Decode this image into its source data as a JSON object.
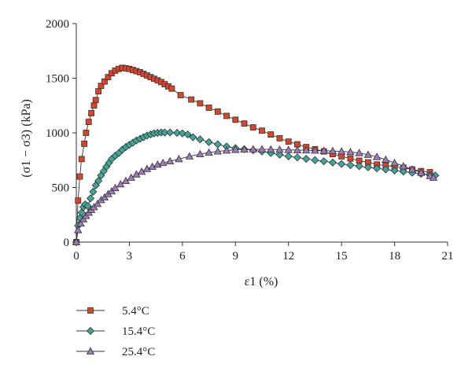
{
  "chart_data": {
    "type": "line",
    "title": "",
    "xlabel": "ε1 (%)",
    "ylabel": "(σ1 − σ3) (kPa)",
    "xlim": [
      0,
      21
    ],
    "ylim": [
      0,
      2000
    ],
    "xticks": [
      0,
      3,
      6,
      9,
      12,
      15,
      18,
      21
    ],
    "yticks": [
      0,
      500,
      1000,
      1500,
      2000
    ],
    "xtick_labels": [
      "0",
      "3",
      "6",
      "9",
      "12",
      "15",
      "18",
      "21"
    ],
    "ytick_labels": [
      "0",
      "500",
      "1000",
      "1500",
      "2000"
    ],
    "grid": false,
    "legend_position": "bottom-left",
    "series": [
      {
        "name": "5.4°C",
        "marker": "square",
        "color": "#d9452b",
        "points": [
          [
            0,
            0
          ],
          [
            0.1,
            380
          ],
          [
            0.2,
            600
          ],
          [
            0.3,
            760
          ],
          [
            0.45,
            900
          ],
          [
            0.55,
            1000
          ],
          [
            0.7,
            1100
          ],
          [
            0.85,
            1180
          ],
          [
            1.0,
            1250
          ],
          [
            1.1,
            1300
          ],
          [
            1.25,
            1380
          ],
          [
            1.4,
            1430
          ],
          [
            1.6,
            1470
          ],
          [
            1.8,
            1510
          ],
          [
            2.0,
            1545
          ],
          [
            2.2,
            1570
          ],
          [
            2.4,
            1585
          ],
          [
            2.6,
            1595
          ],
          [
            2.8,
            1590
          ],
          [
            3.0,
            1585
          ],
          [
            3.2,
            1575
          ],
          [
            3.4,
            1565
          ],
          [
            3.6,
            1555
          ],
          [
            3.8,
            1540
          ],
          [
            4.0,
            1525
          ],
          [
            4.2,
            1510
          ],
          [
            4.4,
            1495
          ],
          [
            4.6,
            1480
          ],
          [
            4.8,
            1465
          ],
          [
            5.0,
            1445
          ],
          [
            5.2,
            1425
          ],
          [
            5.4,
            1405
          ],
          [
            5.9,
            1345
          ],
          [
            6.5,
            1305
          ],
          [
            7.0,
            1270
          ],
          [
            7.5,
            1230
          ],
          [
            8.0,
            1195
          ],
          [
            8.5,
            1155
          ],
          [
            9.0,
            1120
          ],
          [
            9.5,
            1085
          ],
          [
            10.0,
            1050
          ],
          [
            10.5,
            1020
          ],
          [
            11.0,
            985
          ],
          [
            11.5,
            950
          ],
          [
            12.0,
            920
          ],
          [
            12.5,
            895
          ],
          [
            13.0,
            870
          ],
          [
            13.5,
            850
          ],
          [
            14.0,
            830
          ],
          [
            14.5,
            805
          ],
          [
            15.0,
            785
          ],
          [
            15.5,
            765
          ],
          [
            16.0,
            745
          ],
          [
            16.5,
            730
          ],
          [
            17.0,
            710
          ],
          [
            17.5,
            700
          ],
          [
            18.0,
            690
          ],
          [
            18.5,
            680
          ],
          [
            19.0,
            665
          ],
          [
            19.5,
            650
          ],
          [
            20.0,
            640
          ]
        ]
      },
      {
        "name": "15.4°C",
        "marker": "diamond",
        "color": "#3fa69a",
        "points": [
          [
            0,
            0
          ],
          [
            0.1,
            150
          ],
          [
            0.2,
            220
          ],
          [
            0.3,
            270
          ],
          [
            0.4,
            320
          ],
          [
            0.5,
            345
          ],
          [
            0.65,
            330
          ],
          [
            0.8,
            400
          ],
          [
            0.95,
            460
          ],
          [
            1.1,
            520
          ],
          [
            1.25,
            560
          ],
          [
            1.4,
            610
          ],
          [
            1.55,
            650
          ],
          [
            1.7,
            690
          ],
          [
            1.85,
            725
          ],
          [
            2.0,
            760
          ],
          [
            2.2,
            790
          ],
          [
            2.4,
            815
          ],
          [
            2.6,
            845
          ],
          [
            2.8,
            870
          ],
          [
            3.0,
            890
          ],
          [
            3.2,
            910
          ],
          [
            3.4,
            930
          ],
          [
            3.6,
            945
          ],
          [
            3.8,
            960
          ],
          [
            4.0,
            975
          ],
          [
            4.2,
            985
          ],
          [
            4.4,
            995
          ],
          [
            4.6,
            1000
          ],
          [
            4.8,
            1003
          ],
          [
            5.0,
            1003
          ],
          [
            5.3,
            1003
          ],
          [
            5.7,
            1000
          ],
          [
            6.0,
            995
          ],
          [
            6.3,
            985
          ],
          [
            6.6,
            960
          ],
          [
            7.0,
            940
          ],
          [
            7.5,
            915
          ],
          [
            8.0,
            895
          ],
          [
            8.5,
            875
          ],
          [
            9.0,
            860
          ],
          [
            9.5,
            850
          ],
          [
            10.0,
            840
          ],
          [
            10.5,
            830
          ],
          [
            11.0,
            815
          ],
          [
            11.5,
            800
          ],
          [
            12.0,
            785
          ],
          [
            12.5,
            775
          ],
          [
            13.0,
            762
          ],
          [
            13.5,
            750
          ],
          [
            14.0,
            740
          ],
          [
            14.5,
            728
          ],
          [
            15.0,
            715
          ],
          [
            15.5,
            705
          ],
          [
            16.0,
            695
          ],
          [
            16.5,
            685
          ],
          [
            17.0,
            675
          ],
          [
            17.5,
            665
          ],
          [
            18.0,
            655
          ],
          [
            18.5,
            645
          ],
          [
            19.0,
            635
          ],
          [
            19.5,
            625
          ],
          [
            20.0,
            615
          ],
          [
            20.3,
            610
          ]
        ]
      },
      {
        "name": "25.4°C",
        "marker": "triangle",
        "color": "#a07ab8",
        "points": [
          [
            0,
            0
          ],
          [
            0.1,
            110
          ],
          [
            0.25,
            170
          ],
          [
            0.4,
            210
          ],
          [
            0.55,
            240
          ],
          [
            0.7,
            270
          ],
          [
            0.85,
            295
          ],
          [
            1.0,
            320
          ],
          [
            1.2,
            350
          ],
          [
            1.4,
            385
          ],
          [
            1.6,
            410
          ],
          [
            1.8,
            440
          ],
          [
            2.0,
            465
          ],
          [
            2.2,
            495
          ],
          [
            2.5,
            530
          ],
          [
            2.8,
            560
          ],
          [
            3.1,
            590
          ],
          [
            3.4,
            620
          ],
          [
            3.7,
            645
          ],
          [
            4.0,
            670
          ],
          [
            4.3,
            690
          ],
          [
            4.6,
            710
          ],
          [
            4.9,
            725
          ],
          [
            5.3,
            740
          ],
          [
            5.8,
            760
          ],
          [
            6.4,
            785
          ],
          [
            7.0,
            805
          ],
          [
            7.5,
            820
          ],
          [
            8.0,
            830
          ],
          [
            8.5,
            838
          ],
          [
            9.0,
            845
          ],
          [
            9.5,
            848
          ],
          [
            10.0,
            850
          ],
          [
            10.5,
            850
          ],
          [
            11.0,
            848
          ],
          [
            11.5,
            846
          ],
          [
            12.0,
            844
          ],
          [
            12.5,
            842
          ],
          [
            13.0,
            840
          ],
          [
            13.5,
            838
          ],
          [
            14.0,
            836
          ],
          [
            14.5,
            834
          ],
          [
            15.0,
            830
          ],
          [
            15.5,
            825
          ],
          [
            16.0,
            815
          ],
          [
            16.5,
            800
          ],
          [
            17.0,
            780
          ],
          [
            17.5,
            755
          ],
          [
            18.0,
            725
          ],
          [
            18.5,
            695
          ],
          [
            19.0,
            665
          ],
          [
            19.5,
            635
          ],
          [
            20.0,
            605
          ],
          [
            20.2,
            590
          ]
        ]
      }
    ]
  }
}
